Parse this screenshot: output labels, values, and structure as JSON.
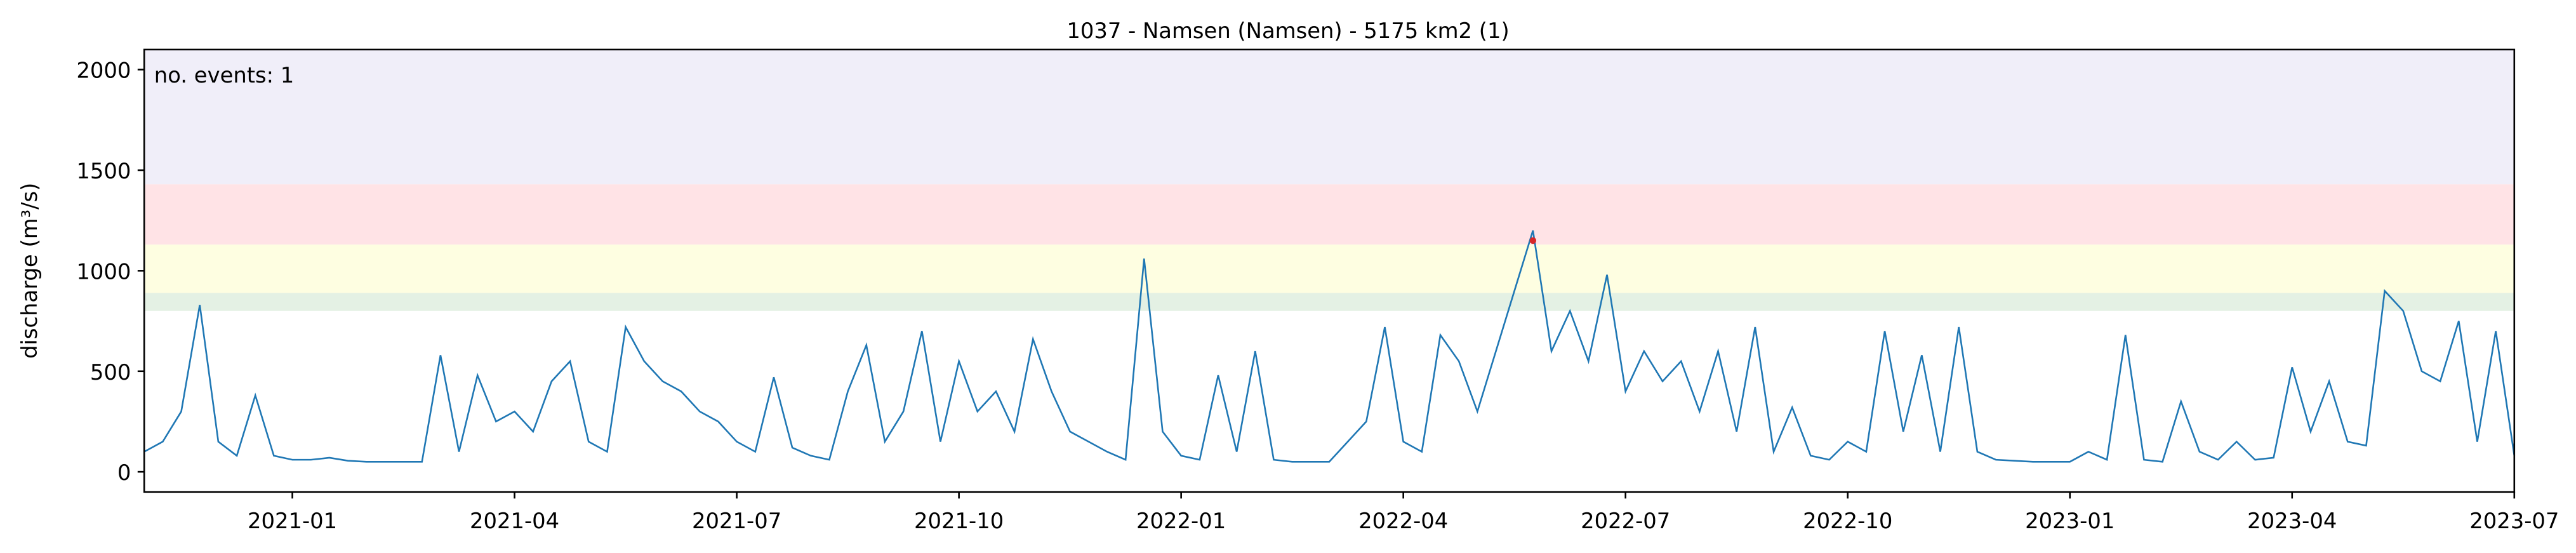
{
  "chart_data": {
    "type": "line",
    "title": "1037 - Namsen (Namsen) - 5175 km2 (1)",
    "y_label": "discharge (m³/s)",
    "annotation": "no. events: 1",
    "annotation_color": "#d62728",
    "xlim": [
      "2020-11",
      "2023-07"
    ],
    "xticks": [
      "2021-01",
      "2021-04",
      "2021-07",
      "2021-10",
      "2022-01",
      "2022-04",
      "2022-07",
      "2022-10",
      "2023-01",
      "2023-04",
      "2023-07"
    ],
    "ylim": [
      -100,
      2100
    ],
    "yticks": [
      0,
      500,
      1000,
      1500,
      2000
    ],
    "bands": [
      {
        "from": 800,
        "to": 890,
        "color": "#e4f1e4"
      },
      {
        "from": 890,
        "to": 1130,
        "color": "#fefee1"
      },
      {
        "from": 1130,
        "to": 1430,
        "color": "#ffe3e6"
      },
      {
        "from": 1430,
        "to": 2100,
        "color": "#f0eef9"
      }
    ],
    "series": [
      {
        "color": "#1f77b4",
        "values": [
          100,
          150,
          300,
          830,
          150,
          80,
          380,
          80,
          60,
          60,
          70,
          55,
          50,
          50,
          50,
          50,
          580,
          100,
          480,
          250,
          300,
          200,
          450,
          550,
          150,
          100,
          720,
          550,
          450,
          400,
          300,
          250,
          150,
          100,
          470,
          120,
          80,
          60,
          400,
          630,
          150,
          300,
          700,
          150,
          550,
          300,
          400,
          200,
          660,
          400,
          200,
          150,
          100,
          60,
          1060,
          200,
          80,
          60,
          480,
          100,
          600,
          60,
          50,
          50,
          50,
          150,
          250,
          720,
          150,
          100,
          680,
          550,
          300,
          600,
          900,
          1200,
          600,
          800,
          550,
          980,
          400,
          600,
          450,
          550,
          300,
          600,
          200,
          720,
          100,
          320,
          80,
          60,
          150,
          100,
          700,
          200,
          580,
          100,
          720,
          100,
          60,
          55,
          50,
          50,
          50,
          100,
          60,
          680,
          60,
          50,
          350,
          100,
          60,
          150,
          60,
          70,
          520,
          200,
          450,
          150,
          130,
          900,
          800,
          500,
          450,
          750,
          150,
          700,
          80
        ]
      }
    ],
    "events": {
      "color": "#d62728",
      "values": [
        1150
      ]
    }
  }
}
